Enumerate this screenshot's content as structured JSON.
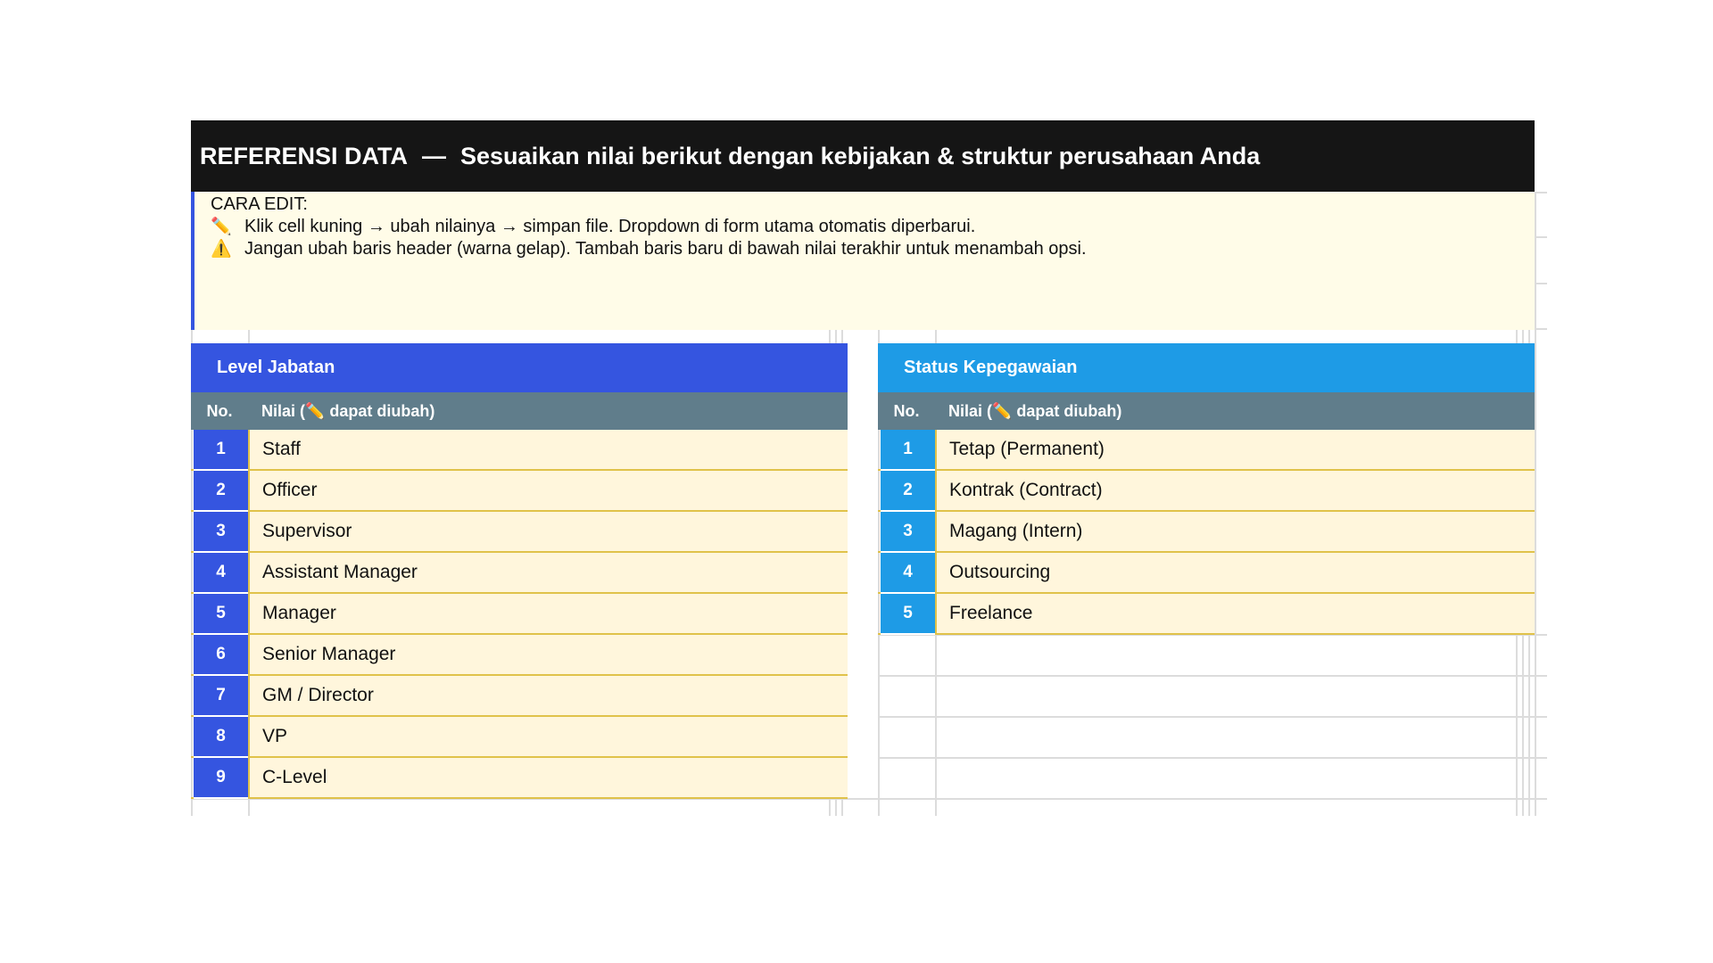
{
  "title": {
    "main": "REFERENSI DATA",
    "dash": "—",
    "sub": "Sesuaikan nilai berikut dengan kebijakan & struktur perusahaan Anda"
  },
  "note": {
    "heading": "CARA EDIT:",
    "line1_icon": "✏️",
    "line1": "Klik cell kuning → ubah nilainya → simpan file. Dropdown di form utama otomatis diperbarui.",
    "line2_icon": "⚠️",
    "line2": "Jangan ubah baris header (warna gelap). Tambah baris baru di bawah nilai terakhir untuk menambah opsi."
  },
  "tables": [
    {
      "title": "Level Jabatan",
      "col_no": "No.",
      "col_value": "Nilai  (✏️ dapat diubah)",
      "accent": "#3555e0",
      "rows": [
        {
          "no": "1",
          "value": "Staff"
        },
        {
          "no": "2",
          "value": "Officer"
        },
        {
          "no": "3",
          "value": "Supervisor"
        },
        {
          "no": "4",
          "value": "Assistant Manager"
        },
        {
          "no": "5",
          "value": "Manager"
        },
        {
          "no": "6",
          "value": "Senior Manager"
        },
        {
          "no": "7",
          "value": "GM / Director"
        },
        {
          "no": "8",
          "value": "VP"
        },
        {
          "no": "9",
          "value": "C-Level"
        }
      ]
    },
    {
      "title": "Status Kepegawaian",
      "col_no": "No.",
      "col_value": "Nilai  (✏️ dapat diubah)",
      "accent": "#1e9be6",
      "rows": [
        {
          "no": "1",
          "value": "Tetap (Permanent)"
        },
        {
          "no": "2",
          "value": "Kontrak (Contract)"
        },
        {
          "no": "3",
          "value": "Magang (Intern)"
        },
        {
          "no": "4",
          "value": "Outsourcing"
        },
        {
          "no": "5",
          "value": "Freelance"
        }
      ]
    }
  ],
  "colors": {
    "title_bg": "#151515",
    "note_bg": "#fffce8",
    "cell_bg": "#fff6dc",
    "cell_border": "#e0c24a",
    "col_header_bg": "#607d8b"
  }
}
